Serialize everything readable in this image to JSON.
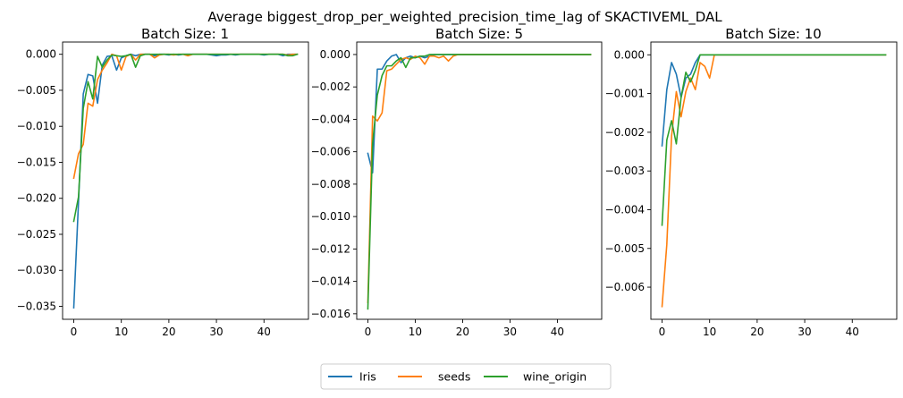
{
  "figure": {
    "suptitle": "Average biggest_drop_per_weighted_precision_time_lag of SKACTIVEML_DAL"
  },
  "legend": {
    "placement": "bottom-center",
    "entries": [
      {
        "name": "Iris",
        "color": "#1f77b4"
      },
      {
        "name": "seeds",
        "color": "#ff7f0e"
      },
      {
        "name": "wine_origin",
        "color": "#2ca02c"
      }
    ]
  },
  "chart_data": [
    {
      "type": "line",
      "title": "Batch Size: 1",
      "xlabel": "",
      "ylabel": "",
      "xlim": [
        -2.35,
        49.35
      ],
      "ylim": [
        -0.0368,
        0.0017
      ],
      "xticks": [
        0,
        10,
        20,
        30,
        40
      ],
      "yticks": [
        0.0,
        -0.005,
        -0.01,
        -0.015,
        -0.02,
        -0.025,
        -0.03,
        -0.035
      ],
      "ytick_labels": [
        "0.000",
        "−0.005",
        "−0.010",
        "−0.015",
        "−0.020",
        "−0.025",
        "−0.030",
        "−0.035"
      ],
      "grid": false,
      "series": [
        {
          "name": "Iris",
          "color": "#1f77b4",
          "x": [
            0,
            1,
            2,
            3,
            4,
            5,
            6,
            7,
            8,
            9,
            10,
            11,
            12,
            13,
            14,
            15,
            16,
            17,
            18,
            19,
            20,
            21,
            22,
            23,
            24,
            25,
            26,
            27,
            28,
            29,
            30,
            31,
            32,
            33,
            34,
            35,
            36,
            37,
            38,
            39,
            40,
            41,
            42,
            43,
            44,
            45,
            46,
            47
          ],
          "y": [
            -0.0352,
            -0.0205,
            -0.0055,
            -0.0028,
            -0.003,
            -0.0068,
            -0.0015,
            -0.0003,
            -0.0002,
            -0.0022,
            -0.0005,
            -0.0002,
            0.0,
            -0.0002,
            0.0,
            0.0,
            0.0,
            -0.0002,
            0.0,
            0.0,
            -0.0001,
            0.0,
            -0.0001,
            0.0,
            0.0,
            0.0,
            0.0,
            0.0,
            0.0,
            -0.0001,
            -0.0002,
            -0.0001,
            -0.0001,
            0.0,
            -0.0001,
            0.0,
            0.0,
            0.0,
            0.0,
            0.0,
            -0.0001,
            0.0,
            0.0,
            0.0,
            -0.0002,
            0.0,
            0.0,
            0.0
          ]
        },
        {
          "name": "seeds",
          "color": "#ff7f0e",
          "x": [
            0,
            1,
            2,
            3,
            4,
            5,
            6,
            7,
            8,
            9,
            10,
            11,
            12,
            13,
            14,
            15,
            16,
            17,
            18,
            19,
            20,
            21,
            22,
            23,
            24,
            25,
            26,
            27,
            28,
            29,
            30,
            31,
            32,
            33,
            34,
            35,
            36,
            37,
            38,
            39,
            40,
            41,
            42,
            43,
            44,
            45,
            46,
            47
          ],
          "y": [
            -0.0172,
            -0.0138,
            -0.0125,
            -0.0068,
            -0.0072,
            -0.0035,
            -0.0022,
            -0.0012,
            0.0,
            -0.0002,
            -0.0022,
            -0.0003,
            0.0,
            -0.0008,
            0.0,
            0.0,
            0.0,
            -0.0005,
            -0.0001,
            0.0,
            0.0,
            -0.0001,
            0.0,
            0.0,
            -0.0002,
            0.0,
            0.0,
            0.0,
            0.0,
            0.0,
            0.0,
            0.0,
            0.0,
            0.0,
            0.0,
            0.0,
            0.0,
            0.0,
            0.0,
            0.0,
            0.0,
            0.0,
            0.0,
            0.0,
            0.0,
            -0.0001,
            0.0,
            0.0
          ]
        },
        {
          "name": "wine_origin",
          "color": "#2ca02c",
          "x": [
            0,
            1,
            2,
            3,
            4,
            5,
            6,
            7,
            8,
            9,
            10,
            11,
            12,
            13,
            14,
            15,
            16,
            17,
            18,
            19,
            20,
            21,
            22,
            23,
            24,
            25,
            26,
            27,
            28,
            29,
            30,
            31,
            32,
            33,
            34,
            35,
            36,
            37,
            38,
            39,
            40,
            41,
            42,
            43,
            44,
            45,
            46,
            47
          ],
          "y": [
            -0.0232,
            -0.0198,
            -0.0075,
            -0.0038,
            -0.0062,
            -0.0003,
            -0.0018,
            -0.0008,
            -0.0001,
            -0.0002,
            -0.0003,
            -0.0002,
            0.0,
            -0.0018,
            -0.0002,
            0.0,
            0.0,
            0.0,
            0.0,
            0.0,
            0.0,
            0.0,
            0.0,
            0.0,
            0.0,
            0.0,
            0.0,
            0.0,
            0.0,
            0.0,
            0.0,
            0.0,
            0.0,
            0.0,
            0.0,
            0.0,
            0.0,
            0.0,
            0.0,
            0.0,
            0.0,
            0.0,
            0.0,
            0.0,
            0.0,
            -0.0002,
            -0.0002,
            0.0
          ]
        }
      ]
    },
    {
      "type": "line",
      "title": "Batch Size: 5",
      "xlabel": "",
      "ylabel": "",
      "xlim": [
        -2.35,
        49.35
      ],
      "ylim": [
        -0.01634,
        0.00077
      ],
      "xticks": [
        0,
        10,
        20,
        30,
        40
      ],
      "yticks": [
        0.0,
        -0.002,
        -0.004,
        -0.006,
        -0.008,
        -0.01,
        -0.012,
        -0.014,
        -0.016
      ],
      "ytick_labels": [
        "0.000",
        "−0.002",
        "−0.004",
        "−0.006",
        "−0.008",
        "−0.010",
        "−0.012",
        "−0.014",
        "−0.016"
      ],
      "grid": false,
      "series": [
        {
          "name": "Iris",
          "color": "#1f77b4",
          "x": [
            0,
            1,
            2,
            3,
            4,
            5,
            6,
            7,
            8,
            9,
            10,
            11,
            12,
            13,
            14,
            15,
            16,
            17,
            18,
            19,
            20,
            21,
            22,
            23,
            24,
            25,
            26,
            27,
            28,
            29,
            30,
            31,
            32,
            33,
            34,
            35,
            36,
            37,
            38,
            39,
            40,
            41,
            42,
            43,
            44,
            45,
            46,
            47
          ],
          "y": [
            -0.0061,
            -0.0073,
            -0.0009,
            -0.0009,
            -0.0004,
            -0.0001,
            0.0,
            -0.0005,
            -0.0002,
            -0.0001,
            -0.0002,
            -0.0001,
            -0.0002,
            -0.0001,
            0.0,
            0.0,
            0.0,
            0.0,
            0.0,
            0.0,
            0.0,
            0.0,
            0.0,
            0.0,
            0.0,
            0.0,
            0.0,
            0.0,
            0.0,
            0.0,
            0.0,
            0.0,
            0.0,
            0.0,
            0.0,
            0.0,
            0.0,
            0.0,
            0.0,
            0.0,
            0.0,
            0.0,
            0.0,
            0.0,
            0.0,
            0.0,
            0.0,
            0.0
          ]
        },
        {
          "name": "seeds",
          "color": "#ff7f0e",
          "x": [
            0,
            1,
            2,
            3,
            4,
            5,
            6,
            7,
            8,
            9,
            10,
            11,
            12,
            13,
            14,
            15,
            16,
            17,
            18,
            19,
            20,
            21,
            22,
            23,
            24,
            25,
            26,
            27,
            28,
            29,
            30,
            31,
            32,
            33,
            34,
            35,
            36,
            37,
            38,
            39,
            40,
            41,
            42,
            43,
            44,
            45,
            46,
            47
          ],
          "y": [
            -0.0153,
            -0.0038,
            -0.0041,
            -0.0036,
            -0.001,
            -0.0009,
            -0.0006,
            -0.0003,
            -0.0002,
            -0.0003,
            -0.0001,
            -0.0002,
            -0.0006,
            -0.0001,
            -0.0001,
            -0.0002,
            -0.0001,
            -0.0004,
            -0.0001,
            0.0,
            0.0,
            0.0,
            0.0,
            0.0,
            0.0,
            0.0,
            0.0,
            0.0,
            0.0,
            0.0,
            0.0,
            0.0,
            0.0,
            0.0,
            0.0,
            0.0,
            0.0,
            0.0,
            0.0,
            0.0,
            0.0,
            0.0,
            0.0,
            0.0,
            0.0,
            0.0,
            0.0,
            0.0
          ]
        },
        {
          "name": "wine_origin",
          "color": "#2ca02c",
          "x": [
            0,
            1,
            2,
            3,
            4,
            5,
            6,
            7,
            8,
            9,
            10,
            11,
            12,
            13,
            14,
            15,
            16,
            17,
            18,
            19,
            20,
            21,
            22,
            23,
            24,
            25,
            26,
            27,
            28,
            29,
            30,
            31,
            32,
            33,
            34,
            35,
            36,
            37,
            38,
            39,
            40,
            41,
            42,
            43,
            44,
            45,
            46,
            47
          ],
          "y": [
            -0.0157,
            -0.0055,
            -0.0025,
            -0.0013,
            -0.0007,
            -0.0007,
            -0.0004,
            -0.0002,
            -0.0008,
            -0.0002,
            -0.0002,
            -0.0001,
            -0.0001,
            0.0,
            0.0,
            0.0,
            0.0,
            0.0,
            0.0,
            0.0,
            0.0,
            0.0,
            0.0,
            0.0,
            0.0,
            0.0,
            0.0,
            0.0,
            0.0,
            0.0,
            0.0,
            0.0,
            0.0,
            0.0,
            0.0,
            0.0,
            0.0,
            0.0,
            0.0,
            0.0,
            0.0,
            0.0,
            0.0,
            0.0,
            0.0,
            0.0,
            0.0,
            0.0
          ]
        }
      ]
    },
    {
      "type": "line",
      "title": "Batch Size: 10",
      "xlabel": "",
      "ylabel": "",
      "xlim": [
        -2.35,
        49.35
      ],
      "ylim": [
        -0.00683,
        0.00033
      ],
      "xticks": [
        0,
        10,
        20,
        30,
        40
      ],
      "yticks": [
        0.0,
        -0.001,
        -0.002,
        -0.003,
        -0.004,
        -0.005,
        -0.006
      ],
      "ytick_labels": [
        "0.000",
        "−0.001",
        "−0.002",
        "−0.003",
        "−0.004",
        "−0.005",
        "−0.006"
      ],
      "grid": false,
      "series": [
        {
          "name": "Iris",
          "color": "#1f77b4",
          "x": [
            0,
            1,
            2,
            3,
            4,
            5,
            6,
            7,
            8,
            9,
            10,
            11,
            12,
            13,
            14,
            15,
            16,
            17,
            18,
            19,
            20,
            21,
            22,
            23,
            24,
            25,
            26,
            27,
            28,
            29,
            30,
            31,
            32,
            33,
            34,
            35,
            36,
            37,
            38,
            39,
            40,
            41,
            42,
            43,
            44,
            45,
            46,
            47
          ],
          "y": [
            -0.00235,
            -0.0009,
            -0.0002,
            -0.0005,
            -0.0011,
            -0.0006,
            -0.0005,
            -0.0002,
            0.0,
            0.0,
            0.0,
            0.0,
            0.0,
            0.0,
            0.0,
            0.0,
            0.0,
            0.0,
            0.0,
            0.0,
            0.0,
            0.0,
            0.0,
            0.0,
            0.0,
            0.0,
            0.0,
            0.0,
            0.0,
            0.0,
            0.0,
            0.0,
            0.0,
            0.0,
            0.0,
            0.0,
            0.0,
            0.0,
            0.0,
            0.0,
            0.0,
            0.0,
            0.0,
            0.0,
            0.0,
            0.0,
            0.0,
            0.0
          ]
        },
        {
          "name": "seeds",
          "color": "#ff7f0e",
          "x": [
            0,
            1,
            2,
            3,
            4,
            5,
            6,
            7,
            8,
            9,
            10,
            11,
            12,
            13,
            14,
            15,
            16,
            17,
            18,
            19,
            20,
            21,
            22,
            23,
            24,
            25,
            26,
            27,
            28,
            29,
            30,
            31,
            32,
            33,
            34,
            35,
            36,
            37,
            38,
            39,
            40,
            41,
            42,
            43,
            44,
            45,
            46,
            47
          ],
          "y": [
            -0.0065,
            -0.0049,
            -0.0021,
            -0.00095,
            -0.0016,
            -0.00095,
            -0.0006,
            -0.0009,
            -0.0002,
            -0.0003,
            -0.0006,
            0.0,
            0.0,
            0.0,
            0.0,
            0.0,
            0.0,
            0.0,
            0.0,
            0.0,
            0.0,
            0.0,
            0.0,
            0.0,
            0.0,
            0.0,
            0.0,
            0.0,
            0.0,
            0.0,
            0.0,
            0.0,
            0.0,
            0.0,
            0.0,
            0.0,
            0.0,
            0.0,
            0.0,
            0.0,
            0.0,
            0.0,
            0.0,
            0.0,
            0.0,
            0.0,
            0.0,
            0.0
          ]
        },
        {
          "name": "wine_origin",
          "color": "#2ca02c",
          "x": [
            0,
            1,
            2,
            3,
            4,
            5,
            6,
            7,
            8,
            9,
            10,
            11,
            12,
            13,
            14,
            15,
            16,
            17,
            18,
            19,
            20,
            21,
            22,
            23,
            24,
            25,
            26,
            27,
            28,
            29,
            30,
            31,
            32,
            33,
            34,
            35,
            36,
            37,
            38,
            39,
            40,
            41,
            42,
            43,
            44,
            45,
            46,
            47
          ],
          "y": [
            -0.0044,
            -0.0022,
            -0.0017,
            -0.0023,
            -0.0011,
            -0.00045,
            -0.0007,
            -0.0004,
            0.0,
            0.0,
            0.0,
            0.0,
            0.0,
            0.0,
            0.0,
            0.0,
            0.0,
            0.0,
            0.0,
            0.0,
            0.0,
            0.0,
            0.0,
            0.0,
            0.0,
            0.0,
            0.0,
            0.0,
            0.0,
            0.0,
            0.0,
            0.0,
            0.0,
            0.0,
            0.0,
            0.0,
            0.0,
            0.0,
            0.0,
            0.0,
            0.0,
            0.0,
            0.0,
            0.0,
            0.0,
            0.0,
            0.0,
            0.0
          ]
        }
      ]
    }
  ]
}
